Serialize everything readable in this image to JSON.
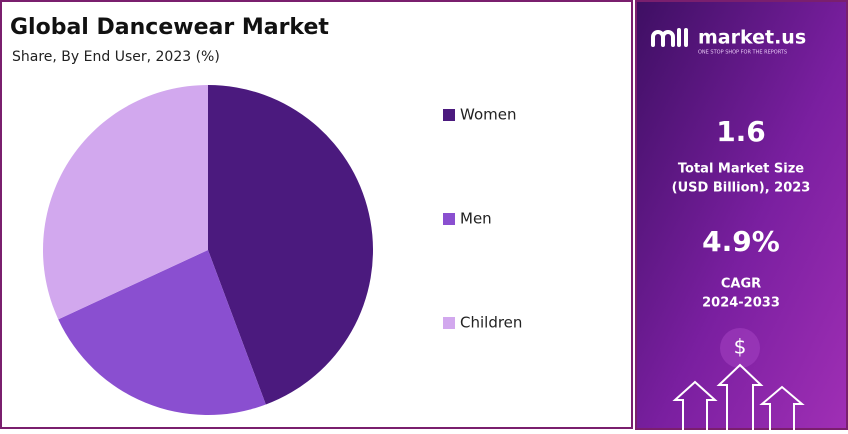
{
  "chart_data": {
    "type": "pie",
    "title": "Global Dancewear Market",
    "subtitle": "Share, By End User, 2023 (%)",
    "categories": [
      "Women",
      "Men",
      "Children"
    ],
    "values": [
      44.3,
      23.8,
      31.9
    ],
    "colors": [
      "#4b1a7e",
      "#8a4fd0",
      "#d2a8ee"
    ],
    "legend": "right"
  },
  "sidebar": {
    "brand": "market.us",
    "tagline": "ONE STOP SHOP FOR THE REPORTS",
    "market_size": "1.6",
    "market_size_label": [
      "Total Market Size",
      "(USD Billion), 2023"
    ],
    "cagr": "4.9%",
    "cagr_label": [
      "CAGR",
      "2024-2033"
    ],
    "icon": "$"
  }
}
